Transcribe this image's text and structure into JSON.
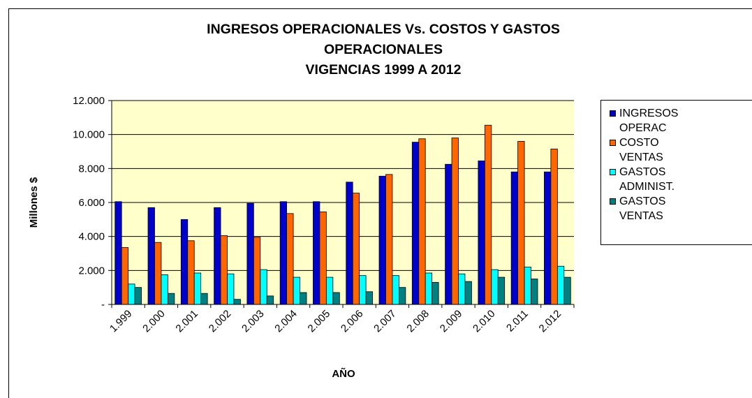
{
  "chart_data": {
    "type": "bar",
    "title": "INGRESOS OPERACIONALES Vs. COSTOS Y GASTOS OPERACIONALES",
    "subtitle": "VIGENCIAS 1999 A 2012",
    "xlabel": "AÑO",
    "ylabel": "Millones $",
    "categories": [
      "1.999",
      "2.000",
      "2.001",
      "2.002",
      "2.003",
      "2.004",
      "2.005",
      "2.006",
      "2.007",
      "2.008",
      "2.009",
      "2.010",
      "2.011",
      "2.012"
    ],
    "series": [
      {
        "name": "INGRESOS OPERAC",
        "color": "#0000cc",
        "values": [
          6050,
          5700,
          5000,
          5700,
          5950,
          6050,
          6050,
          7200,
          7550,
          9550,
          8250,
          8450,
          7800,
          7800
        ]
      },
      {
        "name": "COSTO VENTAS",
        "color": "#ff6600",
        "values": [
          3350,
          3650,
          3750,
          4050,
          3950,
          5350,
          5450,
          6550,
          7650,
          9750,
          9800,
          10550,
          9600,
          9150
        ]
      },
      {
        "name": "GASTOS ADMINIST.",
        "color": "#00ffff",
        "values": [
          1200,
          1750,
          1850,
          1800,
          2050,
          1600,
          1600,
          1700,
          1700,
          1850,
          1800,
          2050,
          2200,
          2250
        ]
      },
      {
        "name": "GASTOS VENTAS",
        "color": "#008080",
        "values": [
          1000,
          650,
          650,
          300,
          500,
          700,
          700,
          750,
          1000,
          1300,
          1350,
          1600,
          1500,
          1600
        ]
      }
    ],
    "ylim": [
      0,
      12000
    ],
    "yticks": [
      {
        "value": 0,
        "label": "-"
      },
      {
        "value": 2000,
        "label": "2.000"
      },
      {
        "value": 4000,
        "label": "4.000"
      },
      {
        "value": 6000,
        "label": "6.000"
      },
      {
        "value": 8000,
        "label": "8.000"
      },
      {
        "value": 10000,
        "label": "10.000"
      },
      {
        "value": 12000,
        "label": "12.000"
      }
    ],
    "grid": true,
    "legend": "right",
    "plot_background": "#ffffcc"
  }
}
